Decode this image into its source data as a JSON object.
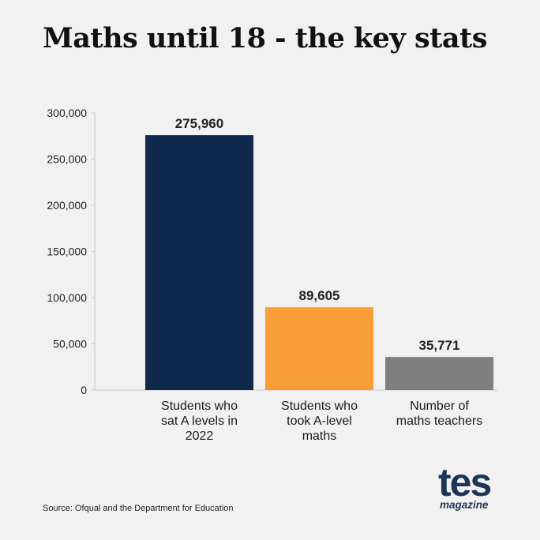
{
  "title": "Maths until 18 - the key stats",
  "source": "Source: Ofqual and the Department for Education",
  "logo": {
    "wordmark": "tes",
    "subtitle": "magazine",
    "color": "#1c3557"
  },
  "chart_data": {
    "type": "bar",
    "categories": [
      [
        "Students who",
        "sat A levels in",
        "2022"
      ],
      [
        "Students who",
        "took A-level",
        "maths"
      ],
      [
        "Number of",
        "maths teachers"
      ]
    ],
    "values": [
      275960,
      89605,
      35771
    ],
    "value_labels": [
      "275,960",
      "89,605",
      "35,771"
    ],
    "colors": [
      "#0f2a4c",
      "#f99d37",
      "#7f7f7f"
    ],
    "ylim": [
      0,
      300000
    ],
    "yticks": [
      0,
      50000,
      100000,
      150000,
      200000,
      250000,
      300000
    ],
    "ytick_labels": [
      "0",
      "50,000",
      "100,000",
      "150,000",
      "200,000",
      "250,000",
      "300,000"
    ],
    "grid": false,
    "xlabel": "",
    "ylabel": ""
  }
}
